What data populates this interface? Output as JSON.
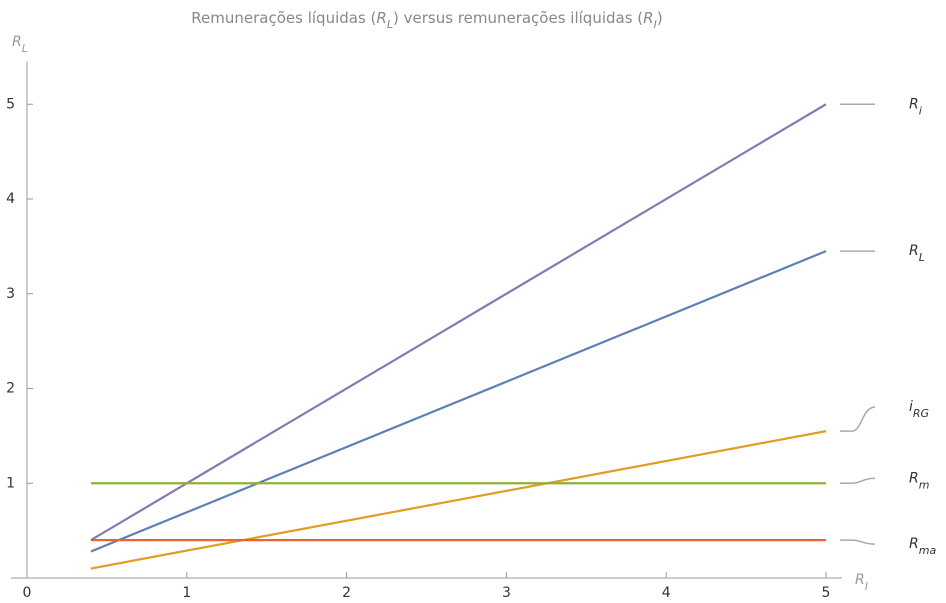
{
  "chart_data": {
    "type": "line",
    "title": [
      {
        "text": "Remunerações líquidas ("
      },
      {
        "text": "R",
        "italic": true
      },
      {
        "text": "L",
        "italic": true,
        "sub": true
      },
      {
        "text": ") versus remunerações ilíquidas ("
      },
      {
        "text": "R",
        "italic": true
      },
      {
        "text": "I",
        "italic": true,
        "sub": true
      },
      {
        "text": ")"
      }
    ],
    "x_label": {
      "base": "R",
      "sub": "I"
    },
    "y_label": {
      "base": "R",
      "sub": "L"
    },
    "x": [
      0.4,
      5
    ],
    "series": [
      {
        "name": "R",
        "subscript": "i",
        "color": "#8778b3",
        "values": [
          0.4,
          5
        ]
      },
      {
        "name": "R",
        "subscript": "L",
        "color": "#5e81b5",
        "values": [
          0.28,
          3.45
        ]
      },
      {
        "name": "i",
        "subscript": "RG",
        "color": "#e19c24",
        "values": [
          0.1,
          1.55
        ]
      },
      {
        "name": "R",
        "subscript": "m",
        "color": "#8fb032",
        "values": [
          1,
          1
        ]
      },
      {
        "name": "R",
        "subscript": "ma",
        "color": "#eb6235",
        "values": [
          0.4,
          0.4
        ]
      }
    ],
    "xlim": [
      -0.1,
      5.1
    ],
    "ylim": [
      0,
      5.45
    ],
    "xticks": [
      0,
      1,
      2,
      3,
      4,
      5
    ],
    "yticks": [
      1,
      2,
      3,
      4,
      5
    ]
  }
}
